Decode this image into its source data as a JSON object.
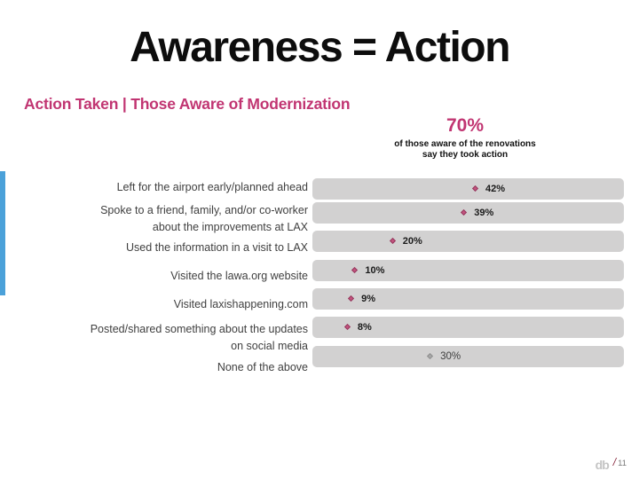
{
  "slide": {
    "title": "Awareness = Action",
    "subtitle": "Action Taken | Those Aware of Modernization",
    "callout": {
      "value": "70%",
      "line1": "of those aware of the renovations",
      "line2": "say they took action"
    },
    "footer": {
      "logo": "db",
      "separator": "/",
      "page_number": "11"
    }
  },
  "chart_data": {
    "type": "bar",
    "orientation": "horizontal",
    "title": "Action Taken | Those Aware of Modernization",
    "axis_max": 80,
    "unit": "%",
    "grid": false,
    "legend": false,
    "note": "full-width gray tracks with diamond value markers",
    "categories": [
      "Left for the airport early/planned ahead",
      "Spoke to a friend, family, and/or co-worker about the improvements at LAX",
      "Used the information in a visit to LAX",
      "Visited the lawa.org website",
      "Visited laxishappening.com",
      "Posted/shared something about the updates on social media",
      "None of the above"
    ],
    "category_lines": [
      [
        "Left for the airport early/planned ahead"
      ],
      [
        "Spoke to a friend, family, and/or co-worker",
        "about the improvements at LAX"
      ],
      [
        "Used the information in a visit to LAX"
      ],
      [
        "Visited the lawa.org website"
      ],
      [
        "Visited laxishappening.com"
      ],
      [
        "Posted/shared something about the updates",
        "on social media"
      ],
      [
        "None of the above"
      ]
    ],
    "values": [
      42,
      39,
      20,
      10,
      9,
      8,
      30
    ],
    "value_labels": [
      "42%",
      "39%",
      "20%",
      "10%",
      "9%",
      "8%",
      "30%"
    ],
    "emphasized": [
      true,
      true,
      true,
      true,
      true,
      true,
      false
    ],
    "colors": {
      "accent_pink": "#c13572",
      "marker_pink": "#c4537e",
      "marker_gray": "#a8a8a8",
      "track_gray": "#d2d1d1",
      "label_gray": "#404040",
      "strip_blue": "#4ba1d9"
    }
  }
}
